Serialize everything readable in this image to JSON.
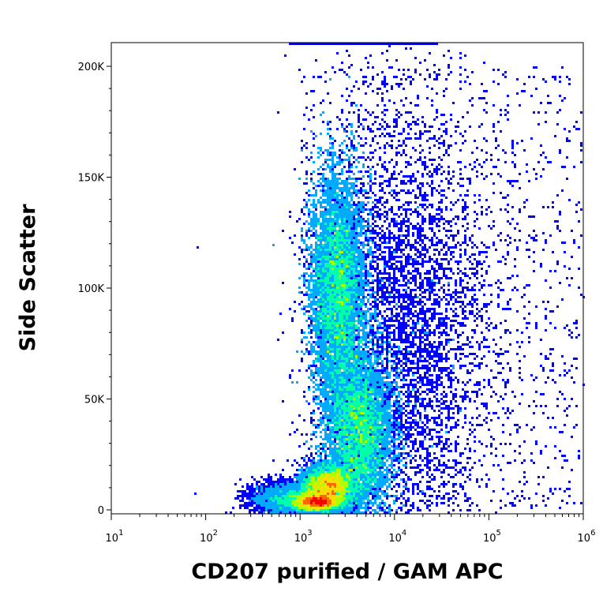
{
  "chart_data": {
    "type": "heatmap",
    "subtype": "flow-cytometry density dot plot",
    "xlabel": "CD207 purified / GAM APC",
    "ylabel": "Side Scatter",
    "x_scale": "log",
    "xlim": [
      10,
      1000000
    ],
    "x_ticks": [
      {
        "base": "10",
        "exp": "1",
        "value": 10
      },
      {
        "base": "10",
        "exp": "2",
        "value": 100
      },
      {
        "base": "10",
        "exp": "3",
        "value": 1000
      },
      {
        "base": "10",
        "exp": "4",
        "value": 10000
      },
      {
        "base": "10",
        "exp": "5",
        "value": 100000
      },
      {
        "base": "10",
        "exp": "6",
        "value": 1000000
      }
    ],
    "y_scale": "linear",
    "ylim": [
      0,
      210000
    ],
    "y_ticks": [
      {
        "label": "0",
        "value": 0
      },
      {
        "label": "50K",
        "value": 50000
      },
      {
        "label": "100K",
        "value": 100000
      },
      {
        "label": "150K",
        "value": 150000
      },
      {
        "label": "200K",
        "value": 200000
      }
    ],
    "grid": false,
    "legend": "none",
    "color_scale": [
      "#0000ff",
      "#00aaff",
      "#00ffaa",
      "#aaff00",
      "#ffdd00",
      "#ff6600",
      "#ff0000"
    ],
    "populations": [
      {
        "x_center": 2500,
        "y_center": 100000,
        "x_spread_log": 0.14,
        "y_spread": 25000,
        "weight": 0.3,
        "peak": "green"
      },
      {
        "x_center": 4200,
        "y_center": 35000,
        "x_spread_log": 0.17,
        "y_spread": 18000,
        "weight": 0.28,
        "peak": "yellow-green"
      },
      {
        "x_center": 2000,
        "y_center": 11000,
        "x_spread_log": 0.13,
        "y_spread": 4500,
        "weight": 0.17,
        "peak": "red"
      },
      {
        "x_center": 1500,
        "y_center": 3500,
        "x_spread_log": 0.12,
        "y_spread": 2000,
        "weight": 0.11,
        "peak": "red"
      },
      {
        "x_center": 900,
        "y_center": 5000,
        "x_spread_log": 0.22,
        "y_spread": 3500,
        "weight": 0.06,
        "peak": "blue"
      },
      {
        "x_center": 12000,
        "y_center": 80000,
        "x_spread_log": 0.45,
        "y_spread": 50000,
        "weight": 0.08,
        "peak": "blue"
      }
    ]
  }
}
